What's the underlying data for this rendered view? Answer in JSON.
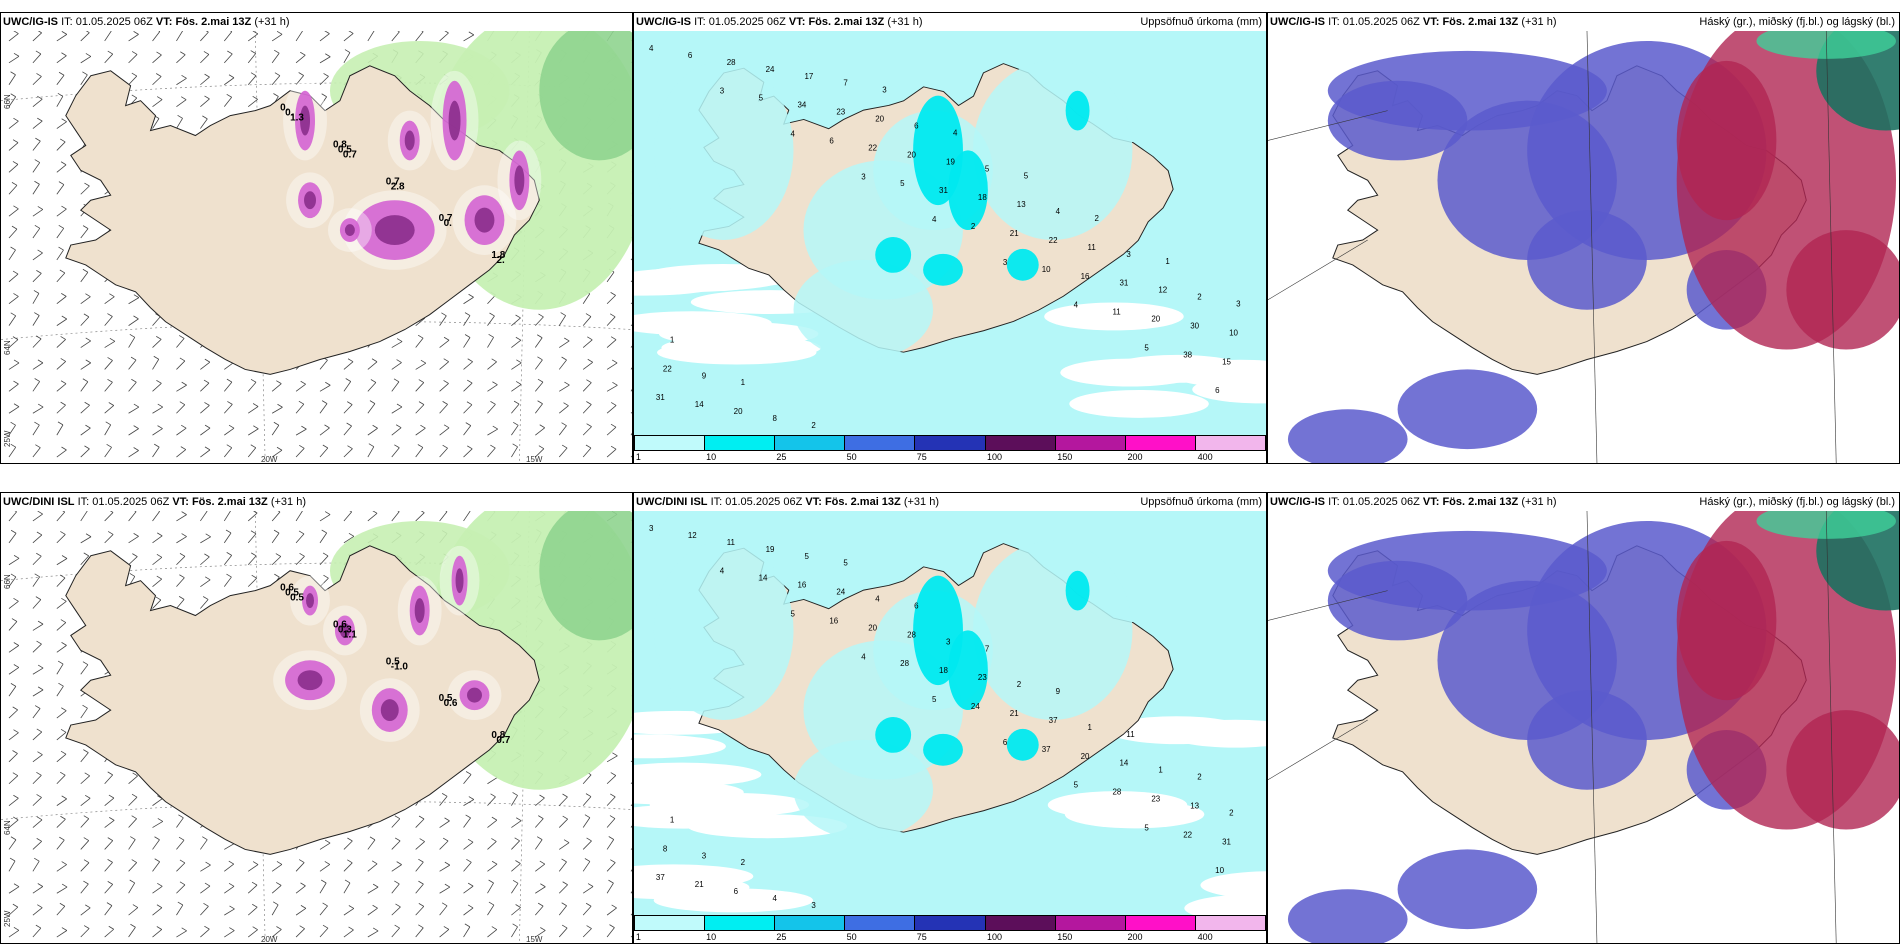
{
  "colors": {
    "land": "#efe1ce",
    "ocean": "#ffffff",
    "precip_light": "#b5f7f8",
    "precip_10": "#00e9ef",
    "precip_25": "#17bfe9",
    "sleet_green": "#c6f0b3",
    "snow_pink": "#d463d3",
    "cloud_high": "#5a5bcc",
    "cloud_mid": "#b02552",
    "cloud_low": "#1d7060"
  },
  "panels": [
    {
      "id": "top-left",
      "model": "UWC/IG-IS",
      "it_label": "IT:",
      "it_value": "01.05.2025 06Z",
      "vt_label": "VT:",
      "vt_value": "Fös. 2.mai 13Z",
      "lead": "(+31 h)",
      "title_right": "",
      "axis_lon": [
        "20W",
        "15W"
      ],
      "axis_lat": [
        "66N",
        "64N",
        "25W"
      ],
      "values": [
        "0.",
        "0.8",
        "0.7",
        "0.7",
        "1.8",
        "0.",
        "0.5",
        "2.8",
        "0.",
        "2.",
        "1.3",
        "0.7"
      ]
    },
    {
      "id": "top-mid",
      "model": "UWC/IG-IS",
      "it_label": "IT:",
      "it_value": "01.05.2025 06Z",
      "vt_label": "VT:",
      "vt_value": "Fös. 2.mai 13Z",
      "lead": "(+31 h)",
      "title_right": "Uppsöfnuð úrkoma (mm)",
      "legend_labels": [
        "1",
        "10",
        "25",
        "50",
        "75",
        "100",
        "150",
        "200",
        "400"
      ],
      "values": [
        "4",
        "3",
        "4",
        "3",
        "4",
        "3",
        "4",
        "5",
        "6",
        "6",
        "5",
        "6",
        "5",
        "2",
        "10",
        "11",
        "38",
        "31",
        "28",
        "34",
        "22",
        "31",
        "21",
        "16",
        "20",
        "15",
        "14",
        "24",
        "23",
        "20",
        "18",
        "22",
        "31",
        "30",
        "22",
        "20",
        "17",
        "20",
        "19",
        "13",
        "11",
        "12",
        "10",
        "9",
        "8",
        "7",
        "6",
        "5",
        "4",
        "3",
        "2",
        "1",
        "1",
        "2",
        "3",
        "4",
        "5",
        "2",
        "1",
        "3"
      ]
    },
    {
      "id": "top-right",
      "model": "UWC/IG-IS",
      "it_label": "IT:",
      "it_value": "01.05.2025 06Z",
      "vt_label": "VT:",
      "vt_value": "Fös. 2.mai 13Z",
      "lead": "(+31 h)",
      "title_right": "Háský (gr.), miðský (fj.bl.) og lágský (bl.)"
    },
    {
      "id": "bottom-left",
      "model": "UWC/DINI ISL",
      "it_label": "IT:",
      "it_value": "01.05.2025 06Z",
      "vt_label": "VT:",
      "vt_value": "Fös. 2.mai 13Z",
      "lead": "(+31 h)",
      "title_right": "",
      "axis_lon": [
        "20W",
        "15W"
      ],
      "axis_lat": [
        "66N",
        "64N",
        "25W"
      ],
      "values": [
        "0.6",
        "0.6",
        "0.5",
        "0.5",
        "0.8",
        "0.5",
        "0.3",
        "-1.0",
        "0.6",
        "0.7",
        "0.5",
        "1.1"
      ]
    },
    {
      "id": "bottom-mid",
      "model": "UWC/DINI ISL",
      "it_label": "IT:",
      "it_value": "01.05.2025 06Z",
      "vt_label": "VT:",
      "vt_value": "Fös. 2.mai 13Z",
      "lead": "(+31 h)",
      "title_right": "Uppsöfnuð úrkoma (mm)",
      "legend_labels": [
        "1",
        "10",
        "25",
        "50",
        "75",
        "100",
        "150",
        "200",
        "400"
      ],
      "values": [
        "3",
        "4",
        "5",
        "4",
        "5",
        "6",
        "5",
        "5",
        "10",
        "12",
        "14",
        "16",
        "28",
        "24",
        "37",
        "28",
        "22",
        "37",
        "11",
        "16",
        "20",
        "18",
        "21",
        "20",
        "23",
        "31",
        "21",
        "19",
        "24",
        "28",
        "23",
        "37",
        "14",
        "13",
        "8",
        "6",
        "5",
        "4",
        "3",
        "2",
        "1",
        "1",
        "2",
        "3",
        "4",
        "5",
        "6",
        "7",
        "9",
        "11",
        "2",
        "1",
        "2",
        "3"
      ]
    },
    {
      "id": "bottom-right",
      "model": "UWC/IG-IS",
      "it_label": "IT:",
      "it_value": "01.05.2025 06Z",
      "vt_label": "VT:",
      "vt_value": "Fös. 2.mai 13Z",
      "lead": "(+31 h)",
      "title_right": "Háský (gr.), miðský (fj.bl.) og lágský (bl.)"
    }
  ],
  "legend_colors": [
    "#c0fafb",
    "#00eef2",
    "#14c4ea",
    "#3e6ee3",
    "#2433b5",
    "#5c0e5a",
    "#b4179e",
    "#ff10c8",
    "#f2b6ec"
  ]
}
